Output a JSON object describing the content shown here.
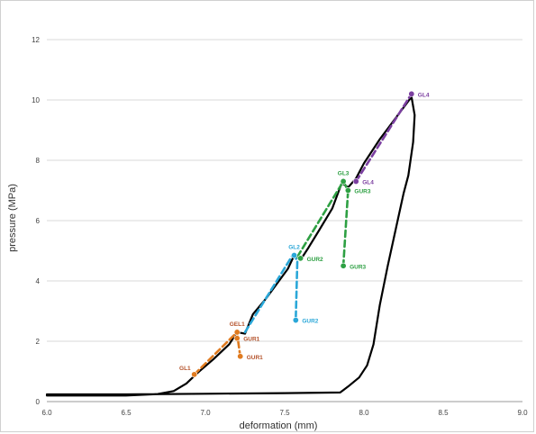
{
  "chart_data": {
    "type": "line",
    "title": "",
    "xlabel": "deformation (mm)",
    "ylabel": "pressure  (MPa)",
    "xlim": [
      6.0,
      9.0
    ],
    "ylim": [
      0,
      12
    ],
    "x_ticks": [
      "6.0",
      "6.5",
      "7.0",
      "7.5",
      "8.0",
      "8.5",
      "9.0"
    ],
    "y_ticks": [
      "0",
      "2",
      "4",
      "6",
      "8",
      "10",
      "12"
    ],
    "grid": "horizontal",
    "legend": "none",
    "series": [
      {
        "color": "#000000",
        "style": "solid",
        "points": [
          [
            6.0,
            0.2
          ],
          [
            6.5,
            0.2
          ],
          [
            6.7,
            0.25
          ],
          [
            6.8,
            0.35
          ],
          [
            6.88,
            0.6
          ],
          [
            6.95,
            0.95
          ],
          [
            7.05,
            1.4
          ],
          [
            7.15,
            1.9
          ],
          [
            7.2,
            2.3
          ],
          [
            7.25,
            2.25
          ],
          [
            7.3,
            2.9
          ],
          [
            7.38,
            3.4
          ],
          [
            7.45,
            3.9
          ],
          [
            7.52,
            4.4
          ],
          [
            7.56,
            4.85
          ],
          [
            7.6,
            4.7
          ],
          [
            7.65,
            5.1
          ],
          [
            7.72,
            5.7
          ],
          [
            7.8,
            6.4
          ],
          [
            7.86,
            7.25
          ],
          [
            7.9,
            7.1
          ],
          [
            7.95,
            7.4
          ],
          [
            8.0,
            7.9
          ],
          [
            8.1,
            8.7
          ],
          [
            8.2,
            9.4
          ],
          [
            8.3,
            10.1
          ],
          [
            8.32,
            9.5
          ],
          [
            8.31,
            8.6
          ],
          [
            8.28,
            7.5
          ],
          [
            8.25,
            6.9
          ],
          [
            8.2,
            5.7
          ],
          [
            8.15,
            4.5
          ],
          [
            8.1,
            3.2
          ],
          [
            8.06,
            1.9
          ],
          [
            8.02,
            1.2
          ],
          [
            7.97,
            0.8
          ],
          [
            7.9,
            0.5
          ],
          [
            7.85,
            0.3
          ],
          [
            7.5,
            0.28
          ],
          [
            7.0,
            0.26
          ],
          [
            6.5,
            0.24
          ],
          [
            6.0,
            0.24
          ]
        ]
      },
      {
        "color": "#e07b20",
        "style": "dashed",
        "points": [
          [
            6.93,
            0.9
          ],
          [
            7.2,
            2.3
          ],
          [
            7.2,
            2.25
          ],
          [
            7.22,
            1.5
          ]
        ]
      },
      {
        "color": "#2aa7d8",
        "style": "dashed",
        "points": [
          [
            7.25,
            2.3
          ],
          [
            7.55,
            4.85
          ],
          [
            7.58,
            4.7
          ],
          [
            7.57,
            2.7
          ]
        ]
      },
      {
        "color": "#2ea043",
        "style": "dashed",
        "points": [
          [
            7.58,
            4.8
          ],
          [
            7.87,
            7.3
          ],
          [
            7.9,
            7.0
          ],
          [
            7.87,
            4.5
          ]
        ]
      },
      {
        "color": "#7b3fa0",
        "style": "dashed",
        "points": [
          [
            7.95,
            7.3
          ],
          [
            8.3,
            10.2
          ]
        ]
      }
    ],
    "markers": [
      {
        "label": "GL1",
        "x": 6.93,
        "y": 0.9,
        "color": "#e07b20",
        "label_color": "#b4522a",
        "anchor": "left"
      },
      {
        "label": "GEL1",
        "x": 7.2,
        "y": 2.3,
        "color": "#e07b20",
        "label_color": "#b4522a",
        "anchor": "top"
      },
      {
        "label": "GUR1",
        "x": 7.2,
        "y": 2.1,
        "color": "#e07b20",
        "label_color": "#b4522a",
        "anchor": "right"
      },
      {
        "label": "GUR1",
        "x": 7.22,
        "y": 1.5,
        "color": "#e07b20",
        "label_color": "#b4522a",
        "anchor": "right"
      },
      {
        "label": "GL2",
        "x": 7.56,
        "y": 4.85,
        "color": "#2aa7d8",
        "label_color": "#2aa7d8",
        "anchor": "top"
      },
      {
        "label": "GUR2",
        "x": 7.57,
        "y": 2.7,
        "color": "#2aa7d8",
        "label_color": "#2aa7d8",
        "anchor": "right"
      },
      {
        "label": "GUR2",
        "x": 7.6,
        "y": 4.75,
        "color": "#2ea043",
        "label_color": "#2ea043",
        "anchor": "right"
      },
      {
        "label": "GL3",
        "x": 7.87,
        "y": 7.3,
        "color": "#2ea043",
        "label_color": "#2ea043",
        "anchor": "top"
      },
      {
        "label": "GUR3",
        "x": 7.9,
        "y": 7.0,
        "color": "#2ea043",
        "label_color": "#2ea043",
        "anchor": "right"
      },
      {
        "label": "GUR3",
        "x": 7.87,
        "y": 4.5,
        "color": "#2ea043",
        "label_color": "#2ea043",
        "anchor": "right"
      },
      {
        "label": "GL4",
        "x": 7.95,
        "y": 7.3,
        "color": "#7b3fa0",
        "label_color": "#7b3fa0",
        "anchor": "right"
      },
      {
        "label": "GL4",
        "x": 8.3,
        "y": 10.2,
        "color": "#7b3fa0",
        "label_color": "#7b3fa0",
        "anchor": "right"
      }
    ]
  }
}
